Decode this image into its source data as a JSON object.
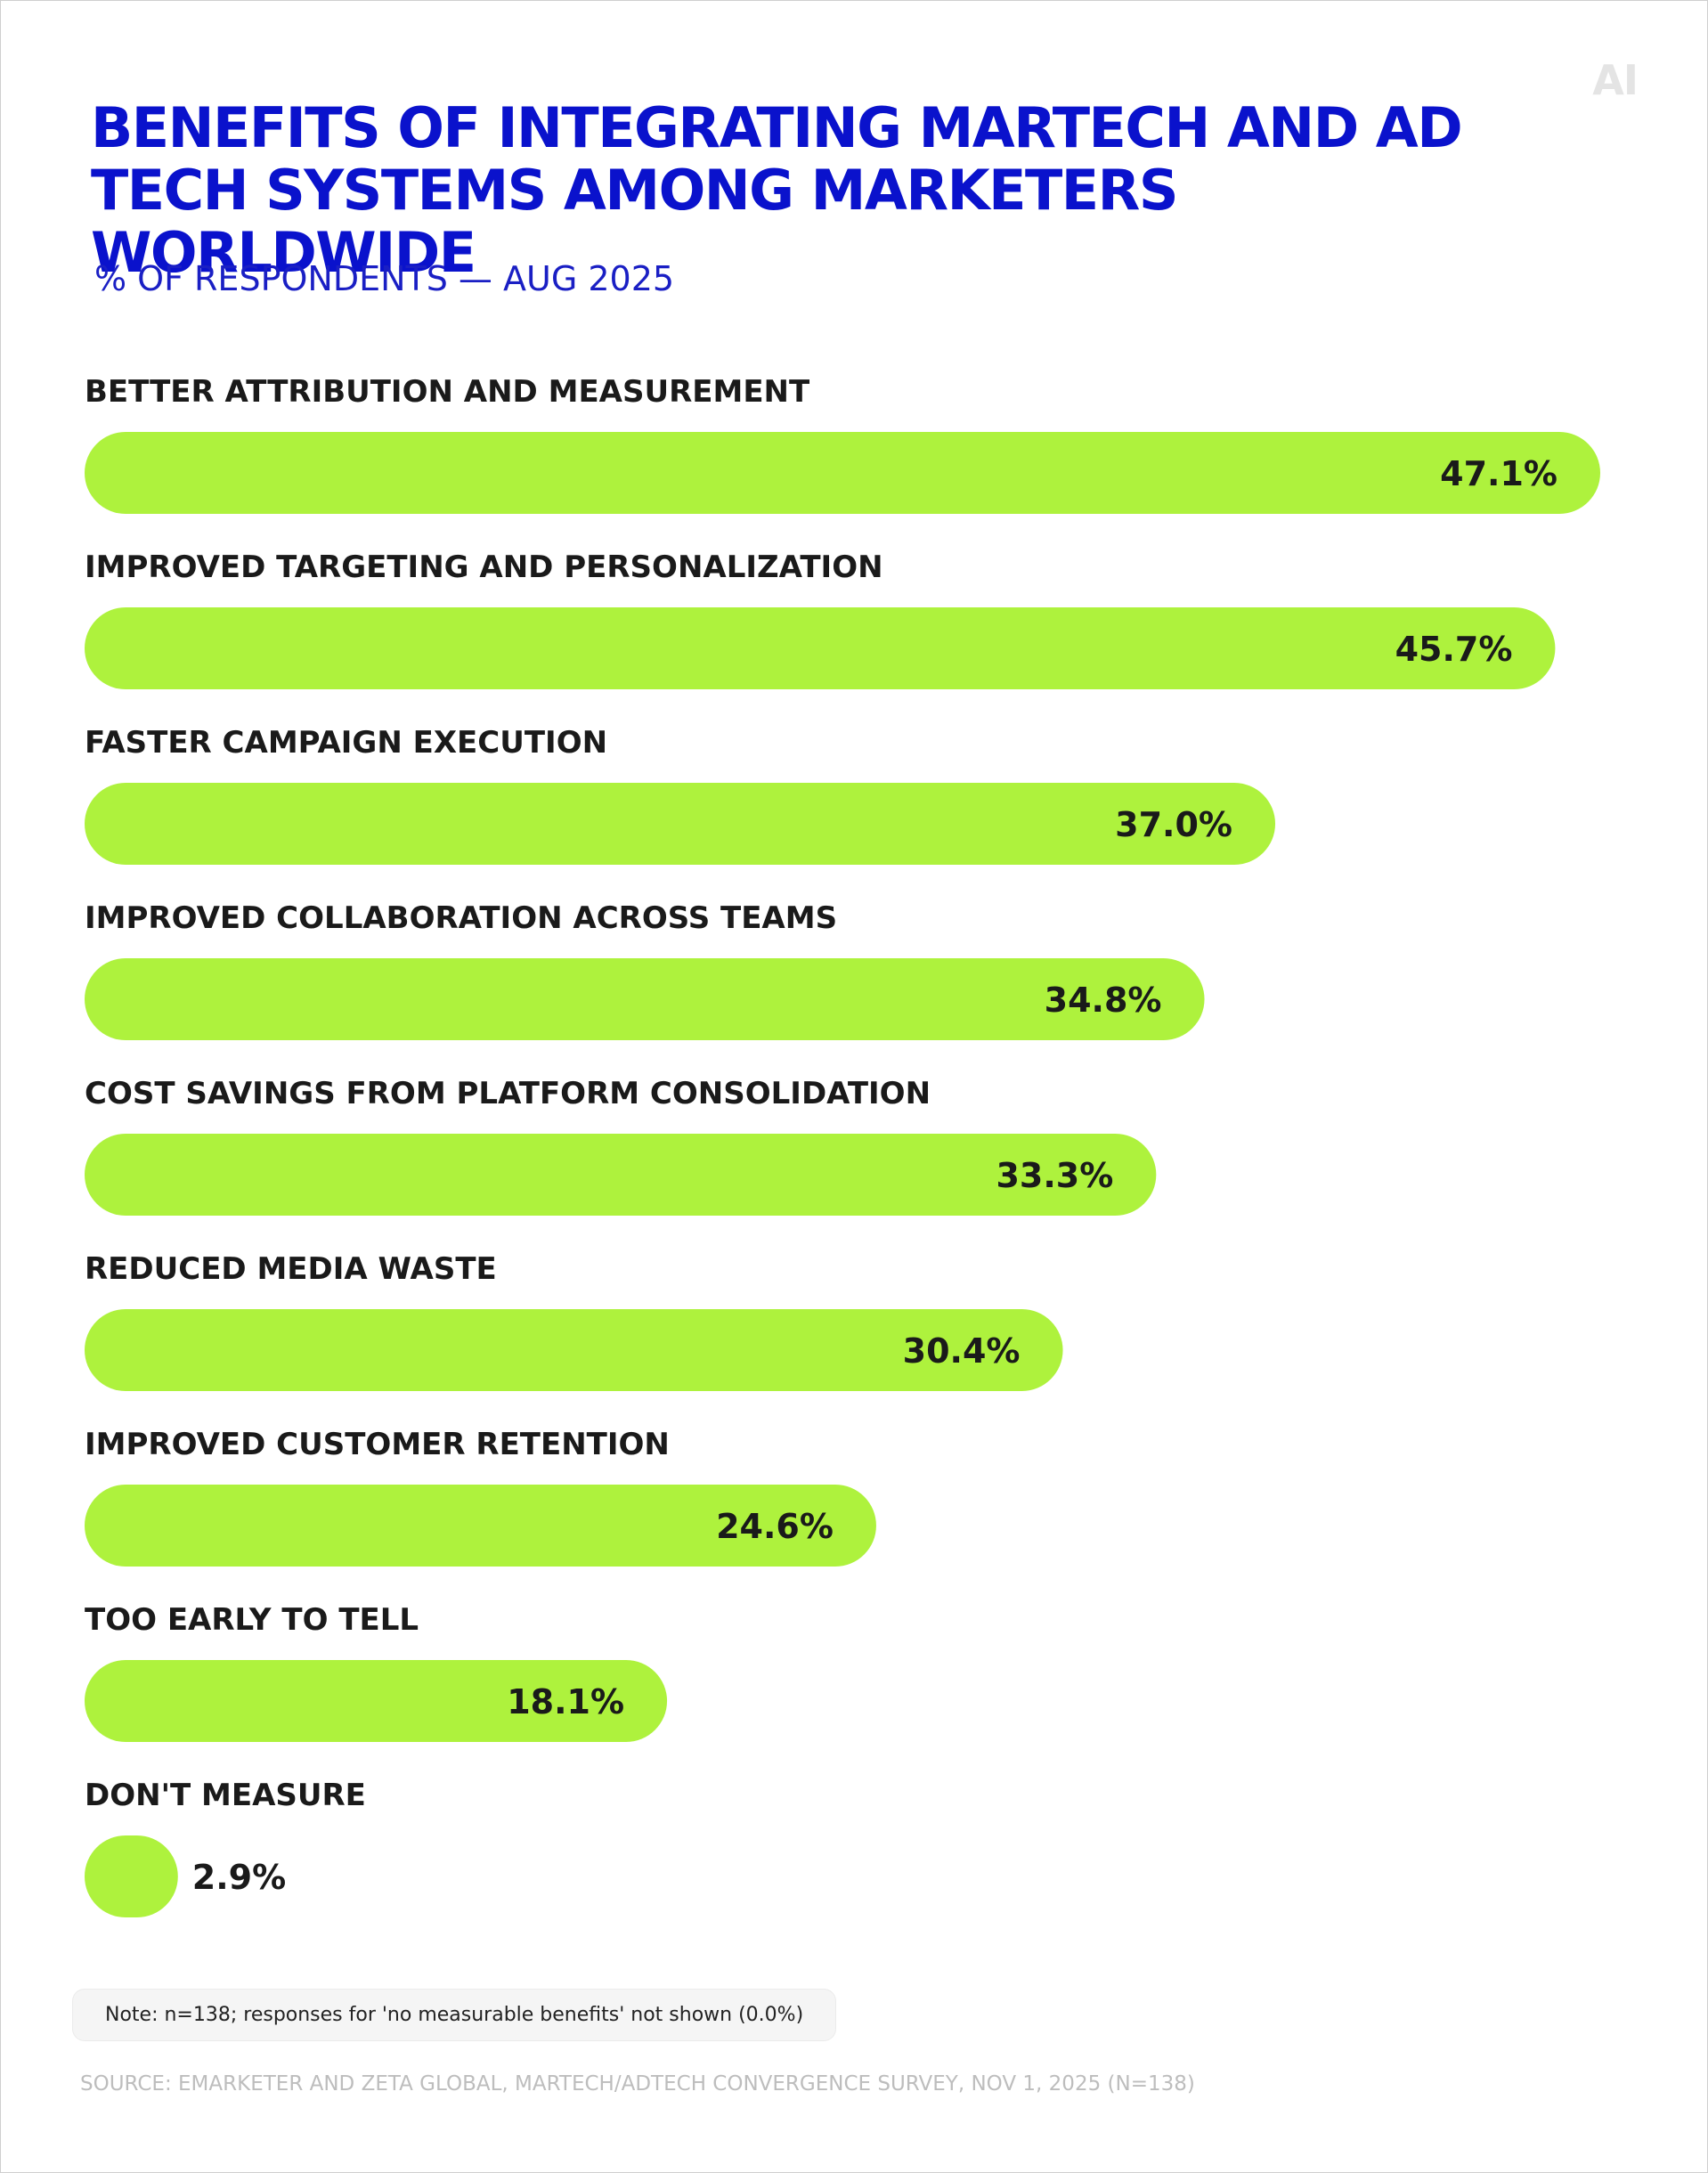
{
  "logo": "AI",
  "chart_data": {
    "type": "bar",
    "orientation": "horizontal",
    "title": "BENEFITS OF INTEGRATING MARTECH AND AD TECH SYSTEMS AMONG MARKETERS WORLDWIDE",
    "subtitle": "% OF RESPONDENTS — AUG 2025",
    "categories": [
      "BETTER ATTRIBUTION AND MEASUREMENT",
      "IMPROVED TARGETING AND PERSONALIZATION",
      "FASTER CAMPAIGN EXECUTION",
      "IMPROVED COLLABORATION ACROSS TEAMS",
      "COST SAVINGS FROM PLATFORM CONSOLIDATION",
      "REDUCED MEDIA WASTE",
      "IMPROVED CUSTOMER RETENTION",
      "TOO EARLY TO TELL",
      "DON'T MEASURE"
    ],
    "values": [
      47.1,
      45.7,
      37.0,
      34.8,
      33.3,
      30.4,
      24.6,
      18.1,
      2.9
    ],
    "value_labels": [
      "47.1%",
      "45.7%",
      "37.0%",
      "34.8%",
      "33.3%",
      "30.4%",
      "24.6%",
      "18.1%",
      "2.9%"
    ],
    "bar_color": "#aef23d",
    "title_color": "#0a12cc",
    "grid": false
  },
  "note": "Note: n=138; responses for 'no measurable benefits' not shown (0.0%)",
  "source": "SOURCE: EMARKETER AND ZETA GLOBAL, MARTECH/ADTECH CONVERGENCE SURVEY, NOV 1, 2025 (N=138)"
}
